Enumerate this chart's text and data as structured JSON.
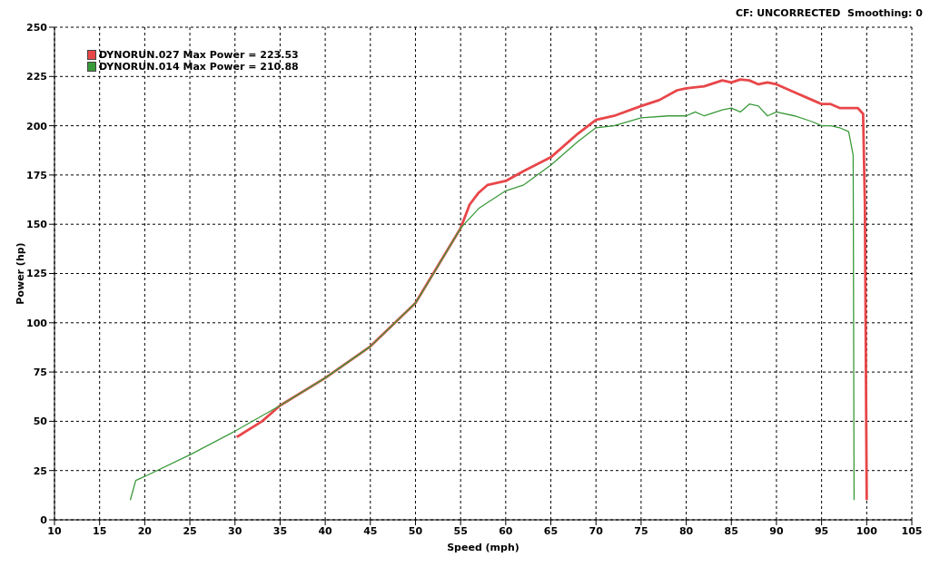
{
  "chart_data": {
    "type": "line",
    "xlabel": "Speed (mph)",
    "ylabel": "Power (hp)",
    "annotations": [
      "CF: UNCORRECTED  Smoothing: 0"
    ],
    "xlim": [
      10,
      105
    ],
    "xticks": [
      10,
      15,
      20,
      25,
      30,
      35,
      40,
      45,
      50,
      55,
      60,
      65,
      70,
      75,
      80,
      85,
      90,
      95,
      100,
      105
    ],
    "ylim": [
      0,
      250
    ],
    "yticks": [
      0,
      25,
      50,
      75,
      100,
      125,
      150,
      175,
      200,
      225,
      250
    ],
    "grid": true,
    "legend": "top left",
    "marker": "none",
    "line_style": "solid",
    "series": [
      {
        "name": "DYNORUN.027 Max Power = 223.53",
        "color": "#e8474a",
        "x": [
          30.2,
          33,
          35,
          40,
          45,
          50,
          55,
          56,
          57,
          58,
          60,
          62,
          65,
          68,
          70,
          72,
          75,
          77,
          79,
          80,
          82,
          84,
          85,
          86,
          87,
          88,
          89,
          90,
          92,
          94,
          95,
          96,
          97,
          99,
          99.6,
          99.8,
          100
        ],
        "values": [
          42,
          50,
          58,
          72,
          88,
          110,
          148,
          160,
          166,
          170,
          172,
          177,
          184,
          196,
          203,
          205,
          210,
          213,
          218,
          219,
          220,
          223,
          222,
          223.5,
          223,
          221,
          222,
          221,
          217,
          213,
          211,
          211,
          209,
          209,
          206,
          160,
          10
        ]
      },
      {
        "name": "DYNORUN.014 Max Power = 210.88",
        "color": "#3a9a3a",
        "x": [
          18.4,
          19,
          20,
          25,
          30,
          35,
          40,
          45,
          50,
          52,
          55,
          57,
          60,
          62,
          65,
          68,
          70,
          72,
          75,
          78,
          80,
          81,
          82,
          84,
          85,
          86,
          87,
          88,
          89,
          90,
          92,
          94,
          95,
          96,
          97,
          98,
          98.5,
          98.6
        ],
        "values": [
          10,
          20,
          22,
          33,
          45,
          58,
          72,
          88,
          110,
          125,
          148,
          158,
          167,
          170,
          180,
          192,
          199,
          200,
          204,
          205,
          205,
          207,
          205,
          208,
          209,
          207,
          211,
          210,
          205,
          207,
          205,
          202,
          200,
          200,
          199,
          197,
          185,
          10
        ]
      }
    ]
  }
}
